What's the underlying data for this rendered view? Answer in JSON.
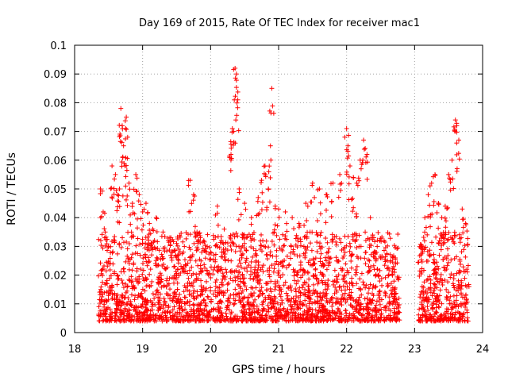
{
  "chart_data": {
    "type": "scatter",
    "title": "Day 169 of 2015, Rate Of TEC Index for receiver mac1",
    "xlabel": "GPS time / hours",
    "ylabel": "ROTI / TECUs",
    "xlim": [
      18,
      24
    ],
    "ylim": [
      0,
      0.1
    ],
    "xticks": [
      "18",
      "19",
      "20",
      "21",
      "22",
      "23",
      "24"
    ],
    "yticks": [
      "0",
      "0.01",
      "0.02",
      "0.03",
      "0.04",
      "0.05",
      "0.06",
      "0.07",
      "0.08",
      "0.09",
      "0.1"
    ],
    "grid": true,
    "marker": "+",
    "color": "#ff0000",
    "series": [
      {
        "name": "mac1",
        "x": [
          18.38,
          18.42,
          18.45,
          18.5,
          18.55,
          18.6,
          18.63,
          18.66,
          18.68,
          18.7,
          18.72,
          18.74,
          18.76,
          18.78,
          18.8,
          18.85,
          18.9,
          18.95,
          19.0,
          19.05,
          19.1,
          19.15,
          19.2,
          19.3,
          19.4,
          19.5,
          19.6,
          19.7,
          19.75,
          19.8,
          19.85,
          19.9,
          19.95,
          20.0,
          20.1,
          20.2,
          20.3,
          20.32,
          20.34,
          20.36,
          20.38,
          20.4,
          20.42,
          20.5,
          20.6,
          20.7,
          20.75,
          20.8,
          20.85,
          20.88,
          20.9,
          20.95,
          21.0,
          21.1,
          21.2,
          21.3,
          21.4,
          21.5,
          21.6,
          21.7,
          21.8,
          21.9,
          22.0,
          22.02,
          22.05,
          22.1,
          22.15,
          22.2,
          22.25,
          22.3,
          22.35,
          22.4,
          22.45,
          22.5,
          22.6,
          22.7,
          22.72,
          23.1,
          23.15,
          23.2,
          23.25,
          23.3,
          23.35,
          23.4,
          23.45,
          23.5,
          23.55,
          23.6,
          23.62,
          23.65,
          23.7,
          23.75
        ],
        "y": [
          0.05,
          0.042,
          0.035,
          0.03,
          0.058,
          0.055,
          0.048,
          0.05,
          0.078,
          0.072,
          0.065,
          0.058,
          0.075,
          0.068,
          0.052,
          0.045,
          0.055,
          0.048,
          0.042,
          0.045,
          0.038,
          0.036,
          0.04,
          0.035,
          0.033,
          0.031,
          0.028,
          0.053,
          0.048,
          0.035,
          0.033,
          0.032,
          0.03,
          0.028,
          0.044,
          0.036,
          0.062,
          0.071,
          0.07,
          0.092,
          0.09,
          0.081,
          0.05,
          0.045,
          0.04,
          0.047,
          0.053,
          0.058,
          0.05,
          0.065,
          0.085,
          0.044,
          0.043,
          0.042,
          0.04,
          0.038,
          0.045,
          0.052,
          0.05,
          0.048,
          0.052,
          0.055,
          0.071,
          0.065,
          0.058,
          0.054,
          0.052,
          0.06,
          0.067,
          0.062,
          0.04,
          0.033,
          0.03,
          0.026,
          0.025,
          0.022,
          0.024,
          0.03,
          0.04,
          0.048,
          0.052,
          0.055,
          0.045,
          0.04,
          0.044,
          0.055,
          0.06,
          0.074,
          0.072,
          0.067,
          0.043,
          0.038
        ]
      }
    ],
    "dense_band": {
      "segments": [
        [
          18.35,
          22.52
        ],
        [
          22.55,
          22.78
        ],
        [
          23.05,
          23.8
        ]
      ],
      "y_range": [
        0.004,
        0.035
      ],
      "note": "dense cloud of points across all observed hours"
    }
  }
}
